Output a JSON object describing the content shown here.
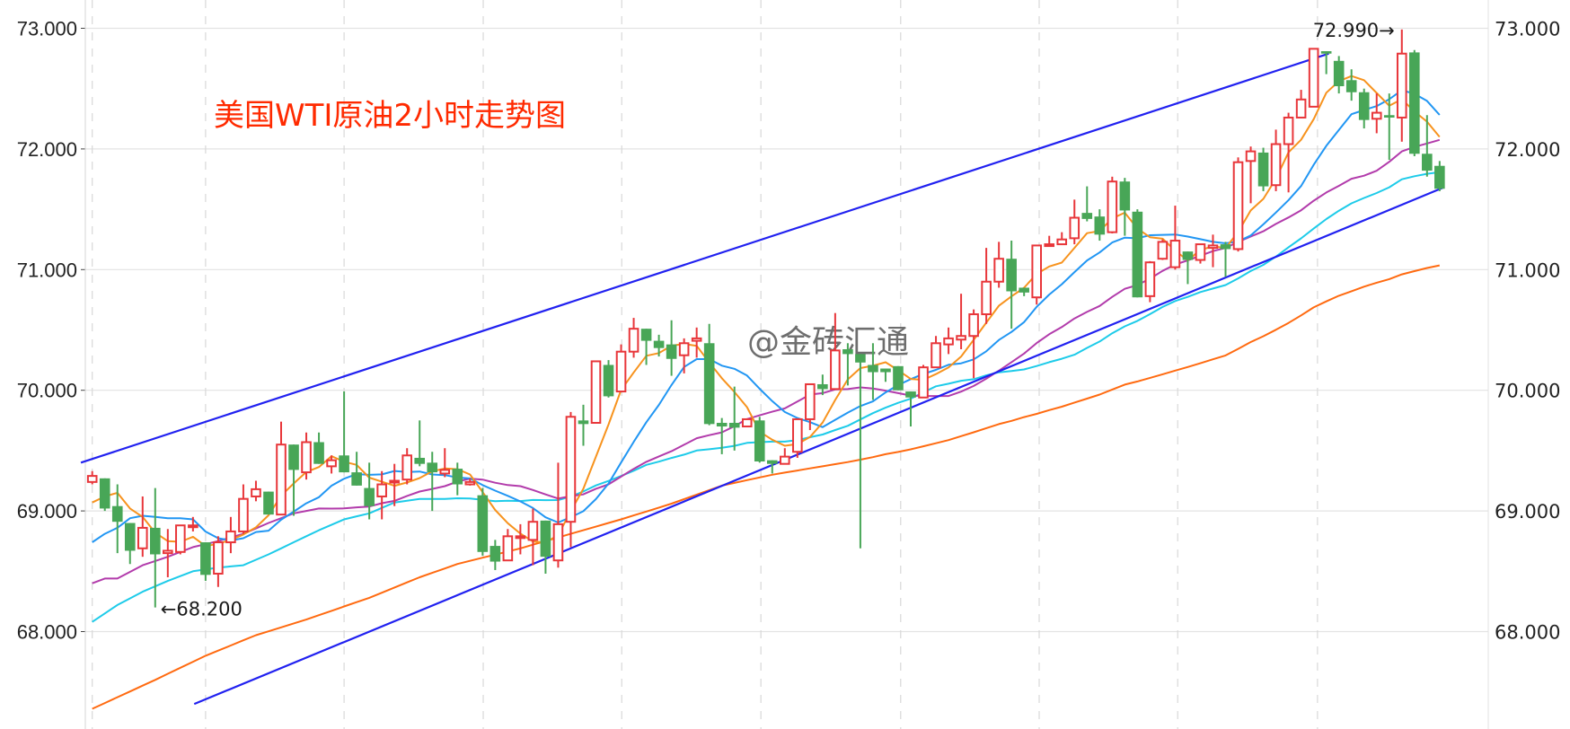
{
  "chart_data": {
    "type": "candlestick",
    "title": "美国WTI原油2小时走势图",
    "watermark": "@金砖汇通",
    "ylim": [
      67.19,
      73.23
    ],
    "yticks": [
      "73.000",
      "72.000",
      "71.000",
      "70.000",
      "69.000",
      "68.000"
    ],
    "ytick_values": [
      73,
      72,
      71,
      70,
      69,
      68
    ],
    "grid": true,
    "colors": {
      "up": "#e8363a",
      "down": "#48a657",
      "trend": "#2121f0"
    },
    "candles_ohlc": [
      [
        69.24,
        69.33,
        69.22,
        69.29
      ],
      [
        69.27,
        69.27,
        69.0,
        69.02
      ],
      [
        69.04,
        69.22,
        68.65,
        68.91
      ],
      [
        68.9,
        68.9,
        68.56,
        68.67
      ],
      [
        68.69,
        69.12,
        68.62,
        68.86
      ],
      [
        68.86,
        69.19,
        68.2,
        68.64
      ],
      [
        68.65,
        68.85,
        68.45,
        68.67
      ],
      [
        68.66,
        68.88,
        68.64,
        68.88
      ],
      [
        68.87,
        68.95,
        68.83,
        68.88
      ],
      [
        68.74,
        68.74,
        68.42,
        68.47
      ],
      [
        68.48,
        68.79,
        68.37,
        68.74
      ],
      [
        68.74,
        68.95,
        68.65,
        68.83
      ],
      [
        68.83,
        69.22,
        68.81,
        69.1
      ],
      [
        69.12,
        69.25,
        69.08,
        69.18
      ],
      [
        69.16,
        69.16,
        68.97,
        68.97
      ],
      [
        68.97,
        69.74,
        68.97,
        69.55
      ],
      [
        69.55,
        69.55,
        68.96,
        69.34
      ],
      [
        69.32,
        69.65,
        69.26,
        69.57
      ],
      [
        69.57,
        69.65,
        69.39,
        69.39
      ],
      [
        69.37,
        69.46,
        69.31,
        69.42
      ],
      [
        69.46,
        69.99,
        69.32,
        69.32
      ],
      [
        69.32,
        69.49,
        69.21,
        69.21
      ],
      [
        69.19,
        69.4,
        68.93,
        69.04
      ],
      [
        69.12,
        69.33,
        68.93,
        69.22
      ],
      [
        69.24,
        69.39,
        69.04,
        69.25
      ],
      [
        69.26,
        69.52,
        69.22,
        69.46
      ],
      [
        69.44,
        69.75,
        69.37,
        69.39
      ],
      [
        69.4,
        69.49,
        69.0,
        69.32
      ],
      [
        69.31,
        69.52,
        69.28,
        69.34
      ],
      [
        69.35,
        69.4,
        69.13,
        69.22
      ],
      [
        69.22,
        69.27,
        69.21,
        69.24
      ],
      [
        69.13,
        69.19,
        68.63,
        68.66
      ],
      [
        68.71,
        68.76,
        68.51,
        68.58
      ],
      [
        68.59,
        68.85,
        68.59,
        68.79
      ],
      [
        68.78,
        68.89,
        68.64,
        68.79
      ],
      [
        68.76,
        69.02,
        68.55,
        68.91
      ],
      [
        68.92,
        68.92,
        68.48,
        68.62
      ],
      [
        68.59,
        69.4,
        68.53,
        68.89
      ],
      [
        68.91,
        69.82,
        68.7,
        69.78
      ],
      [
        69.75,
        69.88,
        69.54,
        69.72
      ],
      [
        69.73,
        70.24,
        69.73,
        70.24
      ],
      [
        70.21,
        70.25,
        69.94,
        69.95
      ],
      [
        69.99,
        70.38,
        69.99,
        70.32
      ],
      [
        70.32,
        70.6,
        70.27,
        70.51
      ],
      [
        70.51,
        70.51,
        70.21,
        70.41
      ],
      [
        70.41,
        70.46,
        70.28,
        70.35
      ],
      [
        70.38,
        70.58,
        70.12,
        70.26
      ],
      [
        70.29,
        70.43,
        70.14,
        70.39
      ],
      [
        70.41,
        70.52,
        70.27,
        70.43
      ],
      [
        70.39,
        70.55,
        69.71,
        69.72
      ],
      [
        69.73,
        69.77,
        69.47,
        69.7
      ],
      [
        69.73,
        70.03,
        69.5,
        69.69
      ],
      [
        69.7,
        69.76,
        69.7,
        69.76
      ],
      [
        69.75,
        69.78,
        69.4,
        69.41
      ],
      [
        69.42,
        69.42,
        69.31,
        69.39
      ],
      [
        69.39,
        69.52,
        69.39,
        69.45
      ],
      [
        69.49,
        69.76,
        69.44,
        69.76
      ],
      [
        69.76,
        70.05,
        69.67,
        70.05
      ],
      [
        70.05,
        70.13,
        69.96,
        70.01
      ],
      [
        70.01,
        70.64,
        70.01,
        70.33
      ],
      [
        70.34,
        70.39,
        70.04,
        70.3
      ],
      [
        70.3,
        70.3,
        68.69,
        70.23
      ],
      [
        70.21,
        70.39,
        69.92,
        70.15
      ],
      [
        70.18,
        70.18,
        70.07,
        70.15
      ],
      [
        70.2,
        70.2,
        70.0,
        70.0
      ],
      [
        69.99,
        69.99,
        69.7,
        69.94
      ],
      [
        69.94,
        70.21,
        69.94,
        70.19
      ],
      [
        70.19,
        70.45,
        70.19,
        70.39
      ],
      [
        70.38,
        70.52,
        70.3,
        70.43
      ],
      [
        70.42,
        70.8,
        70.34,
        70.45
      ],
      [
        70.45,
        70.67,
        70.1,
        70.63
      ],
      [
        70.63,
        71.18,
        70.55,
        70.9
      ],
      [
        70.9,
        71.23,
        70.85,
        71.09
      ],
      [
        71.09,
        71.24,
        70.51,
        70.82
      ],
      [
        70.85,
        70.85,
        70.78,
        70.81
      ],
      [
        70.77,
        71.2,
        70.71,
        71.2
      ],
      [
        71.2,
        71.28,
        71.19,
        71.21
      ],
      [
        71.21,
        71.31,
        71.21,
        71.25
      ],
      [
        71.26,
        71.58,
        71.21,
        71.43
      ],
      [
        71.47,
        71.69,
        71.4,
        71.42
      ],
      [
        71.44,
        71.5,
        71.24,
        71.29
      ],
      [
        71.31,
        71.77,
        71.3,
        71.73
      ],
      [
        71.73,
        71.76,
        71.28,
        71.49
      ],
      [
        71.48,
        71.5,
        70.77,
        70.77
      ],
      [
        70.78,
        71.07,
        70.73,
        71.06
      ],
      [
        71.09,
        71.25,
        71.08,
        71.23
      ],
      [
        71.02,
        71.53,
        71.0,
        71.24
      ],
      [
        71.15,
        71.15,
        70.88,
        71.08
      ],
      [
        71.08,
        71.21,
        71.05,
        71.21
      ],
      [
        71.18,
        71.29,
        71.02,
        71.2
      ],
      [
        71.21,
        71.23,
        70.94,
        71.17
      ],
      [
        71.17,
        71.93,
        71.15,
        71.89
      ],
      [
        71.9,
        72.02,
        71.55,
        71.98
      ],
      [
        71.97,
        72.01,
        71.65,
        71.69
      ],
      [
        71.7,
        72.16,
        71.65,
        72.04
      ],
      [
        72.04,
        72.3,
        71.64,
        72.26
      ],
      [
        72.26,
        72.49,
        72.26,
        72.41
      ],
      [
        72.35,
        72.83,
        72.35,
        72.83
      ],
      [
        72.81,
        72.81,
        72.62,
        72.79
      ],
      [
        72.73,
        72.77,
        72.46,
        72.52
      ],
      [
        72.57,
        72.66,
        72.4,
        72.47
      ],
      [
        72.47,
        72.5,
        72.17,
        72.24
      ],
      [
        72.25,
        72.46,
        72.13,
        72.3
      ],
      [
        72.28,
        72.46,
        71.91,
        72.26
      ],
      [
        72.26,
        72.99,
        72.06,
        72.79
      ],
      [
        72.8,
        72.82,
        71.94,
        71.96
      ],
      [
        71.96,
        72.28,
        71.77,
        71.82
      ],
      [
        71.86,
        71.9,
        71.65,
        71.67
      ]
    ],
    "moving_averages": [
      {
        "period": 5,
        "color": "#f7931e",
        "lead": [
          [
            0,
            69.07
          ],
          [
            1,
            69.12
          ],
          [
            2,
            69.15
          ],
          [
            3,
            69.02
          ]
        ]
      },
      {
        "period": 10,
        "color": "#2196f3",
        "lead": [
          [
            0,
            68.74
          ],
          [
            1,
            68.81
          ],
          [
            2,
            68.86
          ],
          [
            3,
            68.94
          ],
          [
            4,
            68.96
          ],
          [
            5,
            68.95
          ],
          [
            6,
            68.94
          ],
          [
            7,
            68.94
          ],
          [
            8,
            68.93
          ]
        ]
      },
      {
        "period": 20,
        "color": "#b23bab",
        "lead": [
          [
            0,
            68.4
          ],
          [
            1,
            68.44
          ],
          [
            2,
            68.44
          ],
          [
            4,
            68.55
          ],
          [
            6,
            68.62
          ],
          [
            8,
            68.7
          ],
          [
            10,
            68.75
          ],
          [
            12,
            68.81
          ],
          [
            14,
            68.9
          ],
          [
            16,
            68.98
          ],
          [
            18,
            69.02
          ]
        ]
      },
      {
        "period": 30,
        "color": "#1dcbe9",
        "lead": [
          [
            0,
            68.08
          ],
          [
            2,
            68.22
          ],
          [
            4,
            68.33
          ],
          [
            6,
            68.42
          ],
          [
            8,
            68.5
          ],
          [
            10,
            68.53
          ],
          [
            12,
            68.55
          ],
          [
            14,
            68.64
          ],
          [
            16,
            68.74
          ],
          [
            18,
            68.84
          ],
          [
            20,
            68.93
          ],
          [
            22,
            68.98
          ],
          [
            24,
            69.07
          ],
          [
            26,
            69.1
          ],
          [
            28,
            69.1
          ]
        ]
      },
      {
        "period": 60,
        "color": "#ff6a10",
        "lead": [
          [
            0,
            67.36
          ],
          [
            5,
            67.6
          ],
          [
            9,
            67.8
          ],
          [
            13,
            67.97
          ],
          [
            17,
            68.1
          ],
          [
            22,
            68.28
          ],
          [
            26,
            68.45
          ],
          [
            29,
            68.56
          ],
          [
            34,
            68.69
          ],
          [
            39,
            68.84
          ],
          [
            42,
            68.93
          ],
          [
            46,
            69.06
          ],
          [
            50,
            69.21
          ],
          [
            54,
            69.3
          ],
          [
            58,
            69.37
          ]
        ]
      }
    ],
    "trendlines": [
      {
        "from": [
          -0.9,
          69.4
        ],
        "to": [
          98.2,
          72.79
        ]
      },
      {
        "from": [
          8.1,
          67.4
        ],
        "to": [
          107.3,
          71.68
        ]
      }
    ],
    "annotations": {
      "high_label": "72.990→",
      "high_value": 72.99,
      "high_candle": 104,
      "low_label": "←68.200",
      "low_value": 68.2,
      "low_candle": 5
    }
  }
}
